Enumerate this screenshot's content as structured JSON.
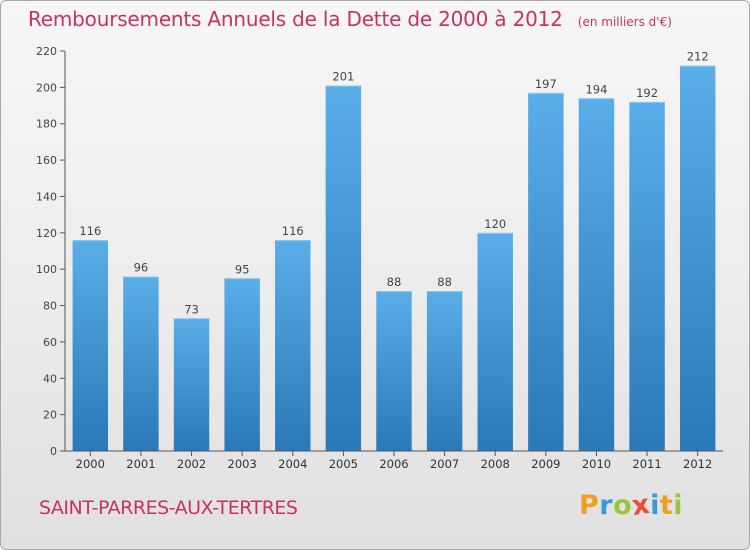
{
  "chart_data": {
    "type": "bar",
    "title": "Remboursements Annuels de la Dette de 2000 à 2012",
    "unit_note": "(en milliers d'€)",
    "categories": [
      "2000",
      "2001",
      "2002",
      "2003",
      "2004",
      "2005",
      "2006",
      "2007",
      "2008",
      "2009",
      "2010",
      "2011",
      "2012"
    ],
    "values": [
      116,
      96,
      73,
      95,
      116,
      201,
      88,
      88,
      120,
      197,
      194,
      192,
      212
    ],
    "ylim": [
      0,
      220
    ],
    "yticks": [
      0,
      20,
      40,
      60,
      80,
      100,
      120,
      140,
      160,
      180,
      200,
      220
    ],
    "grid": false,
    "bar_color_top": "#5aaee8",
    "bar_color_bottom": "#2a78b8"
  },
  "footer": {
    "city": "SAINT-PARRES-AUX-TERTRES",
    "brand": {
      "letters": [
        "P",
        "r",
        "o",
        "x",
        "i",
        "t",
        "i"
      ],
      "colors": [
        "#f0a020",
        "#3a9ad9",
        "#9bc53d",
        "#e94e3c",
        "#3a9ad9",
        "#f0a020",
        "#9bc53d"
      ]
    }
  },
  "colors": {
    "accent": "#c8325f"
  }
}
